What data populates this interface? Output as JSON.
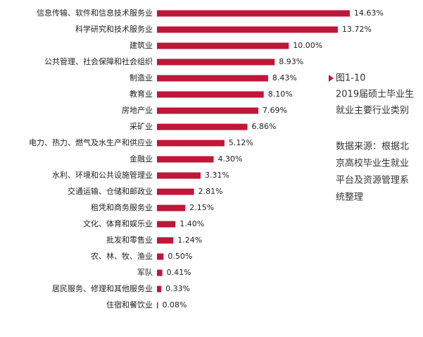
{
  "chart_data": {
    "type": "bar",
    "orientation": "horizontal",
    "color": "#c0163a",
    "categories": [
      "信息传输、软件和信息技术服务业",
      "科学研究和技术服务业",
      "建筑业",
      "公共管理、社会保障和社会组织",
      "制造业",
      "教育业",
      "房地产业",
      "采矿业",
      "电力、热力、燃气及水生产和供应业",
      "金融业",
      "水利、环境和公共设施管理业",
      "交通运输、仓储和邮政业",
      "租凭和商务服务业",
      "文化、体育和娱乐业",
      "批发和零售业",
      "农、林、牧、渔业",
      "军队",
      "居民服务、修理和其他服务业",
      "住宿和餐饮业"
    ],
    "values": [
      14.63,
      13.72,
      10.0,
      8.93,
      8.43,
      8.1,
      7.69,
      6.86,
      5.12,
      4.3,
      3.31,
      2.81,
      2.15,
      1.4,
      1.24,
      0.5,
      0.41,
      0.33,
      0.08
    ],
    "value_labels": [
      "14.63%",
      "13.72%",
      "10.00%",
      "8.93%",
      "8.43%",
      "8.10%",
      "7.69%",
      "6.86%",
      "5.12%",
      "4.30%",
      "3.31%",
      "2.81%",
      "2.15%",
      "1.40%",
      "1.24%",
      "0.50%",
      "0.41%",
      "0.33%",
      "0.08%"
    ],
    "figure_label": "图1-10",
    "title_lines": [
      "2019届硕士毕业生",
      "就业主要行业类别"
    ],
    "source_lines": [
      "数据来源：根据北",
      "京高校毕业生就业",
      "平台及资源管理系",
      "统整理"
    ]
  }
}
